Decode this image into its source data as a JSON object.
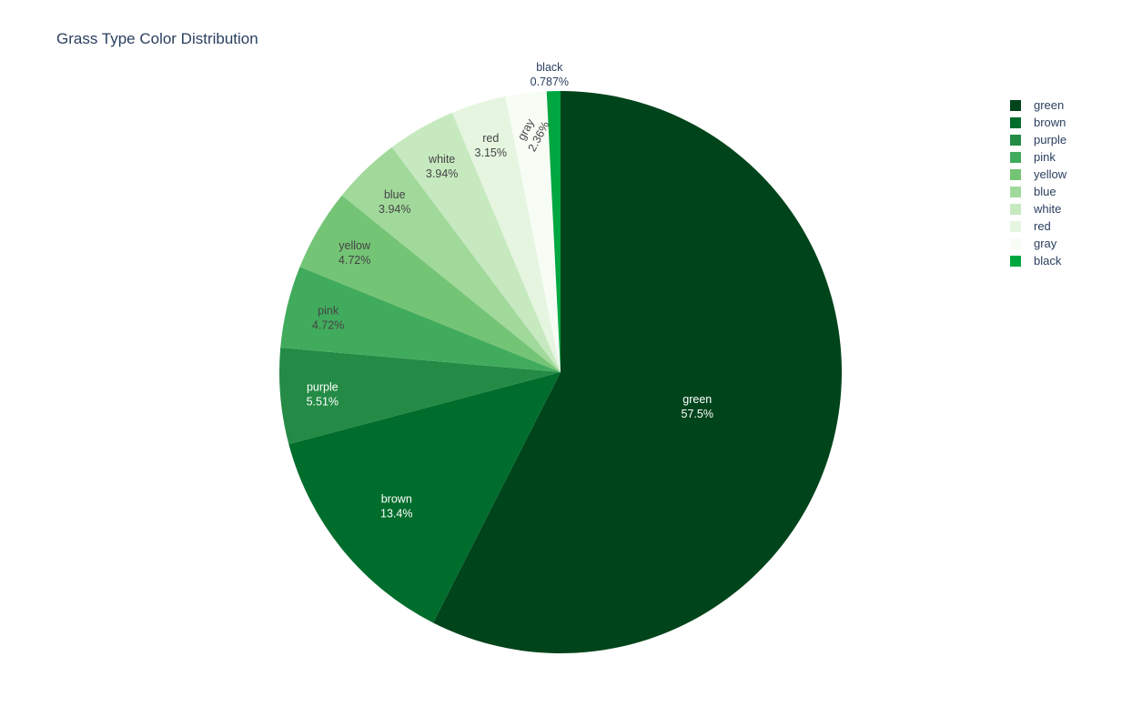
{
  "chart_data": {
    "type": "pie",
    "title": "Grass Type Color Distribution",
    "direction": "clockwise",
    "sort": "descending",
    "legend_placement": "top-right",
    "slices": [
      {
        "label": "green",
        "value": 57.5,
        "text": "57.5%",
        "color": "#00441b"
      },
      {
        "label": "brown",
        "value": 13.4,
        "text": "13.4%",
        "color": "#006d2c"
      },
      {
        "label": "purple",
        "value": 5.51,
        "text": "5.51%",
        "color": "#238b45"
      },
      {
        "label": "pink",
        "value": 4.72,
        "text": "4.72%",
        "color": "#41ab5d"
      },
      {
        "label": "yellow",
        "value": 4.72,
        "text": "4.72%",
        "color": "#74c476"
      },
      {
        "label": "blue",
        "value": 3.94,
        "text": "3.94%",
        "color": "#a1d99b"
      },
      {
        "label": "white",
        "value": 3.94,
        "text": "3.94%",
        "color": "#c7e9c0"
      },
      {
        "label": "red",
        "value": 3.15,
        "text": "3.15%",
        "color": "#e5f5e0"
      },
      {
        "label": "gray",
        "value": 2.36,
        "text": "2.36%",
        "color": "#f7fcf5"
      },
      {
        "label": "black",
        "value": 0.787,
        "text": "0.787%",
        "color": "#00a640"
      }
    ]
  }
}
